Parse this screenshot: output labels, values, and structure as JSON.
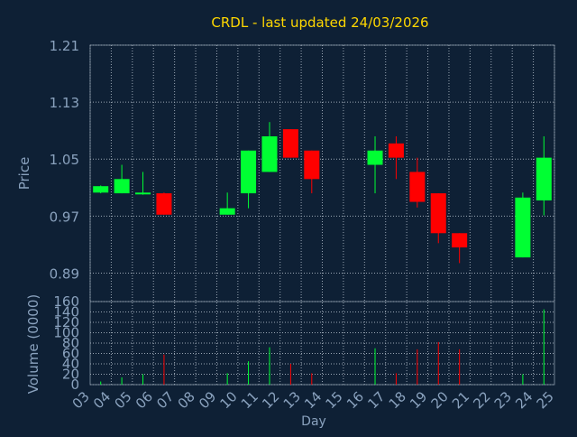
{
  "colors": {
    "background": "#0e2035",
    "plot_background": "#0e2035",
    "grid": "#9aa6b4",
    "frame": "#6f7f91",
    "title": "#ffd700",
    "tick_label": "#8aa2be",
    "axis_label": "#8aa2be",
    "up": "#00ff33",
    "down": "#ff0000"
  },
  "chart_data": [
    {
      "type": "candlestick",
      "title": "CRDL - last updated 24/03/2026",
      "ylabel": "Price",
      "ylim": [
        0.85,
        1.21
      ],
      "yticks": [
        "1.21",
        "1.13",
        "1.05",
        "0.97",
        "0.89"
      ],
      "x_ticks": [
        "03",
        "04",
        "05",
        "06",
        "07",
        "08",
        "09",
        "10",
        "11",
        "12",
        "13",
        "14",
        "15",
        "16",
        "17",
        "18",
        "19",
        "20",
        "21",
        "22",
        "23",
        "24",
        "25"
      ],
      "grid": true,
      "candles": [
        {
          "day": "03",
          "open": 1.003,
          "high": 1.013,
          "low": 1.002,
          "close": 1.012
        },
        {
          "day": "04",
          "open": 1.002,
          "high": 1.042,
          "low": 1.002,
          "close": 1.022
        },
        {
          "day": "05",
          "open": 1.002,
          "high": 1.032,
          "low": 1.0,
          "close": 1.003
        },
        {
          "day": "06",
          "open": 1.002,
          "high": 1.003,
          "low": 0.972,
          "close": 0.972
        },
        {
          "day": "09",
          "open": 0.972,
          "high": 1.003,
          "low": 0.972,
          "close": 0.981
        },
        {
          "day": "10",
          "open": 1.002,
          "high": 1.062,
          "low": 0.981,
          "close": 1.062
        },
        {
          "day": "11",
          "open": 1.032,
          "high": 1.102,
          "low": 1.032,
          "close": 1.082
        },
        {
          "day": "12",
          "open": 1.092,
          "high": 1.092,
          "low": 1.052,
          "close": 1.052
        },
        {
          "day": "13",
          "open": 1.062,
          "high": 1.062,
          "low": 1.002,
          "close": 1.022
        },
        {
          "day": "16",
          "open": 1.042,
          "high": 1.082,
          "low": 1.002,
          "close": 1.062
        },
        {
          "day": "17",
          "open": 1.072,
          "high": 1.082,
          "low": 1.022,
          "close": 1.052
        },
        {
          "day": "18",
          "open": 1.032,
          "high": 1.052,
          "low": 0.982,
          "close": 0.99
        },
        {
          "day": "19",
          "open": 1.002,
          "high": 1.002,
          "low": 0.932,
          "close": 0.946
        },
        {
          "day": "20",
          "open": 0.946,
          "high": 0.946,
          "low": 0.904,
          "close": 0.926
        },
        {
          "day": "23",
          "open": 0.912,
          "high": 1.003,
          "low": 0.912,
          "close": 0.996
        },
        {
          "day": "24",
          "open": 0.992,
          "high": 1.082,
          "low": 0.971,
          "close": 1.052
        }
      ]
    },
    {
      "type": "bar",
      "ylabel": "Volume (0000)",
      "xlabel": "Day",
      "ylim": [
        0,
        160
      ],
      "yticks": [
        "160",
        "140",
        "120",
        "100",
        "80",
        "60",
        "40",
        "20",
        "0"
      ],
      "x_ticks": [
        "03",
        "04",
        "05",
        "06",
        "07",
        "08",
        "09",
        "10",
        "11",
        "12",
        "13",
        "14",
        "15",
        "16",
        "17",
        "18",
        "19",
        "20",
        "21",
        "22",
        "23",
        "24",
        "25"
      ],
      "grid": true,
      "bars": [
        {
          "day": "03",
          "value": 6,
          "direction": "up"
        },
        {
          "day": "04",
          "value": 14,
          "direction": "up"
        },
        {
          "day": "05",
          "value": 20,
          "direction": "up"
        },
        {
          "day": "06",
          "value": 58,
          "direction": "down"
        },
        {
          "day": "09",
          "value": 22,
          "direction": "up"
        },
        {
          "day": "10",
          "value": 45,
          "direction": "up"
        },
        {
          "day": "11",
          "value": 72,
          "direction": "up"
        },
        {
          "day": "12",
          "value": 40,
          "direction": "down"
        },
        {
          "day": "13",
          "value": 22,
          "direction": "down"
        },
        {
          "day": "16",
          "value": 70,
          "direction": "up"
        },
        {
          "day": "17",
          "value": 22,
          "direction": "down"
        },
        {
          "day": "18",
          "value": 68,
          "direction": "down"
        },
        {
          "day": "19",
          "value": 82,
          "direction": "down"
        },
        {
          "day": "20",
          "value": 68,
          "direction": "down"
        },
        {
          "day": "23",
          "value": 20,
          "direction": "up"
        },
        {
          "day": "24",
          "value": 145,
          "direction": "up"
        }
      ]
    }
  ]
}
